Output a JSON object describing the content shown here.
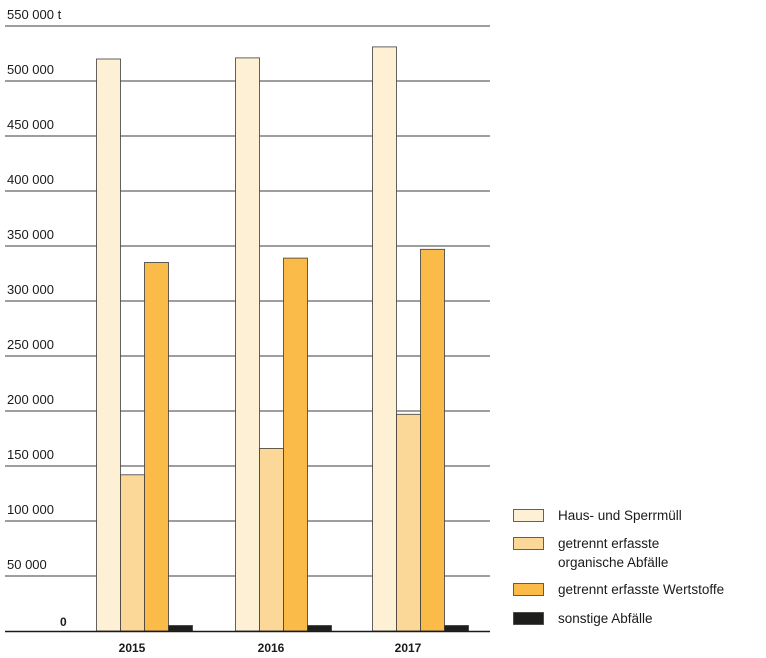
{
  "chart_data": {
    "type": "bar",
    "categories": [
      "2015",
      "2016",
      "2017"
    ],
    "series": [
      {
        "name": "Haus- und Sperrmüll",
        "color": "#fdf0d5",
        "values": [
          520000,
          521000,
          531000
        ]
      },
      {
        "name": "getrennt erfasste organische Abfälle",
        "color": "#fcd898",
        "values": [
          142000,
          166000,
          197000
        ]
      },
      {
        "name": "getrennt erfasste Wertstoffe",
        "color": "#fbbb48",
        "values": [
          335000,
          339000,
          347000
        ]
      },
      {
        "name": "sonstige Abfälle",
        "color": "#1d1d1b",
        "values": [
          5000,
          5000,
          5000
        ]
      }
    ],
    "yticks": [
      {
        "value": 50000,
        "label": "50 000"
      },
      {
        "value": 100000,
        "label": "100 000"
      },
      {
        "value": 150000,
        "label": "150 000"
      },
      {
        "value": 200000,
        "label": "200 000"
      },
      {
        "value": 250000,
        "label": "250 000"
      },
      {
        "value": 300000,
        "label": "300 000"
      },
      {
        "value": 350000,
        "label": "350 000"
      },
      {
        "value": 400000,
        "label": "400 000"
      },
      {
        "value": 450000,
        "label": "450 000"
      },
      {
        "value": 500000,
        "label": "500 000"
      },
      {
        "value": 550000,
        "label": "550 000  t"
      }
    ],
    "zero_label": "0",
    "ylim": [
      0,
      550000
    ],
    "grid": true,
    "legend_position": "bottom-right",
    "legend": [
      {
        "lines": [
          "Haus- und Sperrmüll"
        ]
      },
      {
        "lines": [
          "getrennt erfasste",
          "organische Abfälle"
        ]
      },
      {
        "lines": [
          "getrennt erfasste Wertstoffe"
        ]
      },
      {
        "lines": [
          "sonstige Abfälle"
        ]
      }
    ]
  }
}
